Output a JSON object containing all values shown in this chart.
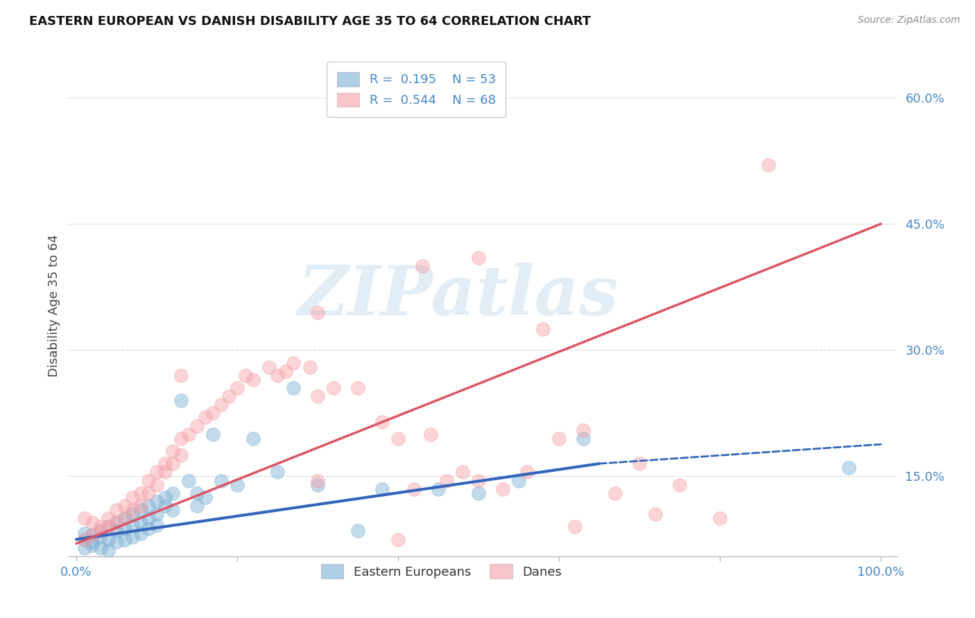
{
  "title": "EASTERN EUROPEAN VS DANISH DISABILITY AGE 35 TO 64 CORRELATION CHART",
  "source": "Source: ZipAtlas.com",
  "xlabel": "",
  "ylabel": "Disability Age 35 to 64",
  "xlim": [
    -0.01,
    1.02
  ],
  "ylim": [
    0.055,
    0.65
  ],
  "x_ticks": [
    0.0,
    0.2,
    0.4,
    0.6,
    0.8,
    1.0
  ],
  "x_tick_labels": [
    "0.0%",
    "",
    "",
    "",
    "",
    "100.0%"
  ],
  "y_ticks": [
    0.15,
    0.3,
    0.45,
    0.6
  ],
  "y_tick_labels": [
    "15.0%",
    "30.0%",
    "45.0%",
    "60.0%"
  ],
  "r_blue": "0.195",
  "n_blue": "53",
  "r_pink": "0.544",
  "n_pink": "68",
  "blue_color": "#7BAFD4",
  "pink_color": "#F4A0A8",
  "trend_blue": "#3366BB",
  "trend_pink": "#DD5566",
  "watermark": "ZIPatlas",
  "watermark_color": "#B8D4E8",
  "legend_label_blue": "Eastern Europeans",
  "legend_label_pink": "Danes",
  "trend_blue_x0": 0.0,
  "trend_blue_y0": 0.075,
  "trend_blue_x1": 0.65,
  "trend_blue_y1": 0.165,
  "trend_blue_dash_x1": 1.0,
  "trend_blue_dash_y1": 0.188,
  "trend_pink_x0": 0.0,
  "trend_pink_y0": 0.07,
  "trend_pink_x1": 1.0,
  "trend_pink_y1": 0.45,
  "blue_scatter_x": [
    0.01,
    0.01,
    0.01,
    0.02,
    0.02,
    0.02,
    0.03,
    0.03,
    0.03,
    0.04,
    0.04,
    0.04,
    0.05,
    0.05,
    0.05,
    0.06,
    0.06,
    0.06,
    0.07,
    0.07,
    0.07,
    0.08,
    0.08,
    0.08,
    0.09,
    0.09,
    0.09,
    0.1,
    0.1,
    0.1,
    0.11,
    0.11,
    0.12,
    0.12,
    0.13,
    0.14,
    0.15,
    0.15,
    0.16,
    0.17,
    0.18,
    0.2,
    0.22,
    0.25,
    0.27,
    0.3,
    0.35,
    0.38,
    0.45,
    0.5,
    0.55,
    0.63,
    0.96
  ],
  "blue_scatter_y": [
    0.075,
    0.082,
    0.065,
    0.08,
    0.072,
    0.068,
    0.085,
    0.078,
    0.065,
    0.09,
    0.075,
    0.062,
    0.095,
    0.085,
    0.072,
    0.1,
    0.088,
    0.075,
    0.105,
    0.092,
    0.078,
    0.11,
    0.095,
    0.082,
    0.115,
    0.1,
    0.088,
    0.12,
    0.105,
    0.092,
    0.125,
    0.115,
    0.13,
    0.11,
    0.24,
    0.145,
    0.13,
    0.115,
    0.125,
    0.2,
    0.145,
    0.14,
    0.195,
    0.155,
    0.255,
    0.14,
    0.085,
    0.135,
    0.135,
    0.13,
    0.145,
    0.195,
    0.16
  ],
  "pink_scatter_x": [
    0.01,
    0.01,
    0.02,
    0.02,
    0.03,
    0.03,
    0.04,
    0.04,
    0.05,
    0.05,
    0.06,
    0.06,
    0.07,
    0.07,
    0.08,
    0.08,
    0.09,
    0.09,
    0.1,
    0.1,
    0.11,
    0.11,
    0.12,
    0.12,
    0.13,
    0.13,
    0.14,
    0.15,
    0.16,
    0.17,
    0.18,
    0.19,
    0.2,
    0.21,
    0.22,
    0.24,
    0.25,
    0.26,
    0.27,
    0.29,
    0.3,
    0.32,
    0.35,
    0.38,
    0.4,
    0.42,
    0.44,
    0.46,
    0.5,
    0.53,
    0.3,
    0.43,
    0.48,
    0.56,
    0.6,
    0.63,
    0.67,
    0.7,
    0.75,
    0.8,
    0.58,
    0.13,
    0.3,
    0.4,
    0.5,
    0.62,
    0.72,
    0.86
  ],
  "pink_scatter_y": [
    0.1,
    0.075,
    0.095,
    0.08,
    0.09,
    0.085,
    0.1,
    0.09,
    0.11,
    0.095,
    0.115,
    0.1,
    0.125,
    0.11,
    0.13,
    0.115,
    0.145,
    0.13,
    0.155,
    0.14,
    0.165,
    0.155,
    0.18,
    0.165,
    0.195,
    0.175,
    0.2,
    0.21,
    0.22,
    0.225,
    0.235,
    0.245,
    0.255,
    0.27,
    0.265,
    0.28,
    0.27,
    0.275,
    0.285,
    0.28,
    0.245,
    0.255,
    0.255,
    0.215,
    0.195,
    0.135,
    0.2,
    0.145,
    0.145,
    0.135,
    0.345,
    0.4,
    0.155,
    0.155,
    0.195,
    0.205,
    0.13,
    0.165,
    0.14,
    0.1,
    0.325,
    0.27,
    0.145,
    0.075,
    0.41,
    0.09,
    0.105,
    0.52
  ]
}
